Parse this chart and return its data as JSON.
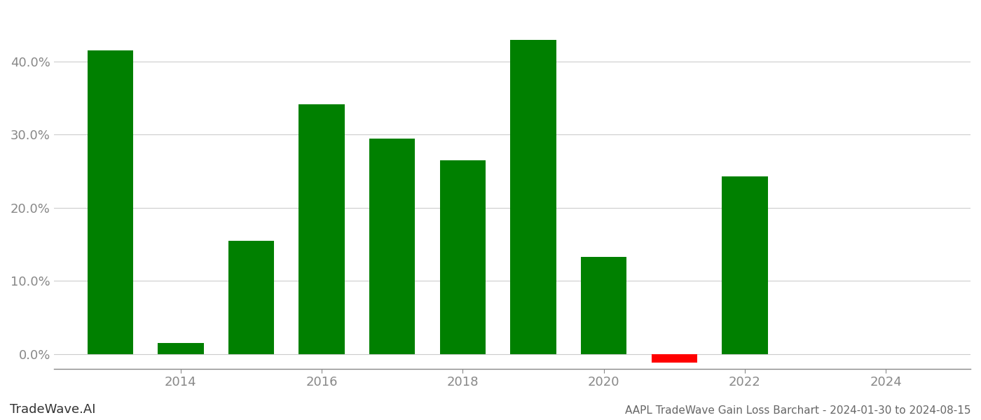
{
  "years": [
    2013,
    2014,
    2015,
    2016,
    2017,
    2018,
    2019,
    2020,
    2021,
    2022,
    2023
  ],
  "values": [
    0.415,
    0.015,
    0.155,
    0.342,
    0.295,
    0.265,
    0.43,
    0.133,
    -0.012,
    0.243,
    0.0
  ],
  "bar_colors": [
    "#008000",
    "#008000",
    "#008000",
    "#008000",
    "#008000",
    "#008000",
    "#008000",
    "#008000",
    "#ff0000",
    "#008000",
    "#ffffff"
  ],
  "title": "AAPL TradeWave Gain Loss Barchart - 2024-01-30 to 2024-08-15",
  "watermark": "TradeWave.AI",
  "background_color": "#ffffff",
  "ylim": [
    -0.02,
    0.47
  ],
  "xlim": [
    2012.2,
    2025.2
  ],
  "xtick_years": [
    2014,
    2016,
    2018,
    2020,
    2022,
    2024
  ],
  "grid_color": "#cccccc",
  "axis_color": "#999999",
  "bar_width": 0.65
}
